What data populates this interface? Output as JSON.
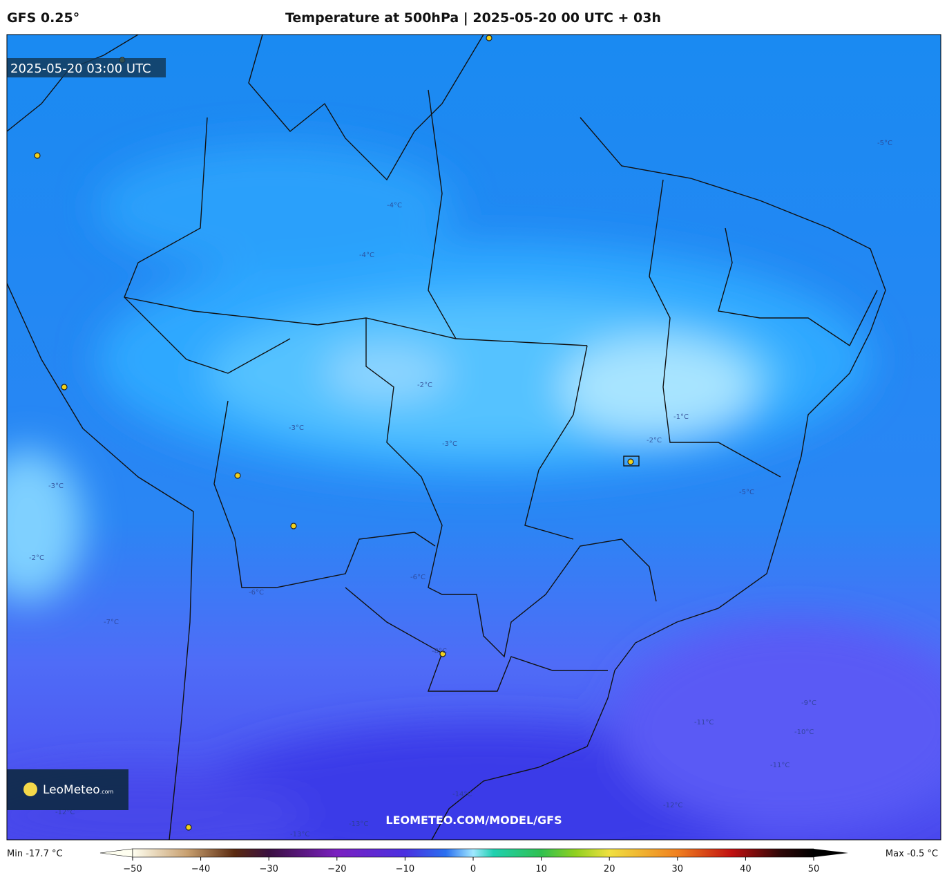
{
  "header": {
    "model": "GFS 0.25°",
    "title": "Temperature at 500hPa | 2025-05-20 00 UTC + 03h"
  },
  "map": {
    "timestamp": "2025-05-20 03:00 UTC",
    "watermark": "LEOMETEO.COM/MODEL/GFS",
    "logo": "LeoMeteo",
    "logo_suffix": ".com",
    "contour_labels": [
      "-1°C",
      "-2°C",
      "-2°C",
      "-2°C",
      "-3°C",
      "-3°C",
      "-3°C",
      "-4°C",
      "-4°C",
      "-5°C",
      "-5°C",
      "-6°C",
      "-6°C",
      "-7°C",
      "-8°C",
      "-9°C",
      "-10°C",
      "-11°C",
      "-11°C",
      "-12°C",
      "-12°C",
      "-13°C",
      "-13°C",
      "-14°C"
    ]
  },
  "colorbar": {
    "min_label": "Min -17.7 °C",
    "max_label": "Max -0.5 °C",
    "range": [
      -50,
      50
    ],
    "ticks": [
      {
        "value": -50,
        "label": "−50"
      },
      {
        "value": -40,
        "label": "−40"
      },
      {
        "value": -30,
        "label": "−30"
      },
      {
        "value": -20,
        "label": "−20"
      },
      {
        "value": -10,
        "label": "−10"
      },
      0,
      10,
      20,
      30,
      40,
      50
    ]
  }
}
